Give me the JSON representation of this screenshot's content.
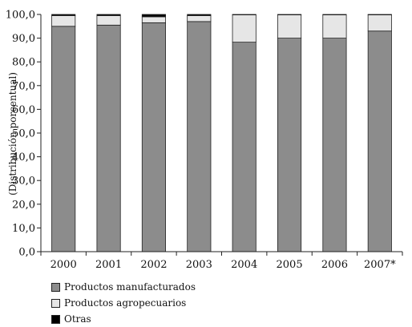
{
  "chart_data": {
    "type": "bar",
    "stacked": true,
    "categories": [
      "2000",
      "2001",
      "2002",
      "2003",
      "2004",
      "2005",
      "2006",
      "2007*"
    ],
    "series": [
      {
        "name": "Productos manufacturados",
        "color": "#8c8c8c",
        "values": [
          95.0,
          95.5,
          96.5,
          97.0,
          88.3,
          90.0,
          90.0,
          93.0
        ]
      },
      {
        "name": "Productos agropecuarios",
        "color": "#e6e6e6",
        "values": [
          4.5,
          4.0,
          2.5,
          2.5,
          11.5,
          9.8,
          9.8,
          6.8
        ]
      },
      {
        "name": "Otras",
        "color": "#000000",
        "values": [
          0.5,
          0.5,
          1.0,
          0.5,
          0.2,
          0.2,
          0.2,
          0.2
        ]
      }
    ],
    "ylabel": "(Distribución porcentual)",
    "xlabel": "",
    "ylim": [
      0,
      100
    ],
    "yticks": [
      "0,0",
      "10,0",
      "20,0",
      "30,0",
      "40,0",
      "50,0",
      "60,0",
      "70,0",
      "80,0",
      "90,0",
      "100,0"
    ],
    "grid": false,
    "legend_position": "bottom-left"
  }
}
